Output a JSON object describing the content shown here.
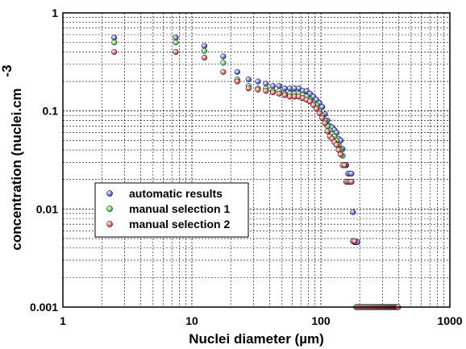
{
  "chart_data": {
    "type": "scatter",
    "xscale": "log",
    "yscale": "log",
    "xlim": [
      1,
      1000
    ],
    "ylim": [
      0.001,
      1
    ],
    "grid": true,
    "legend_position": "lower-left",
    "xlabel": "Nuclei diameter (µm)",
    "ylabel": "concentration (nuclei.cm",
    "ylabel_superscript": "-3",
    "x_ticks": [
      {
        "value": 1,
        "label": "1"
      },
      {
        "value": 10,
        "label": "10"
      },
      {
        "value": 100,
        "label": "100"
      },
      {
        "value": 1000,
        "label": "1000"
      }
    ],
    "y_ticks": [
      {
        "value": 1,
        "label": "1"
      },
      {
        "value": 0.1,
        "label": "0.1"
      },
      {
        "value": 0.01,
        "label": "0.01"
      },
      {
        "value": 0.001,
        "label": "0.001"
      }
    ],
    "series": [
      {
        "name": "automatic results",
        "color": "#2233cc",
        "points": [
          [
            2.5,
            0.56
          ],
          [
            7.5,
            0.56
          ],
          [
            12.5,
            0.46
          ],
          [
            17.5,
            0.36
          ],
          [
            22.5,
            0.25
          ],
          [
            27.5,
            0.21
          ],
          [
            32.5,
            0.2
          ],
          [
            37.5,
            0.19
          ],
          [
            42.5,
            0.18
          ],
          [
            47.5,
            0.18
          ],
          [
            52.5,
            0.17
          ],
          [
            57.5,
            0.17
          ],
          [
            62.5,
            0.17
          ],
          [
            67.5,
            0.17
          ],
          [
            72.5,
            0.16
          ],
          [
            77.5,
            0.16
          ],
          [
            82.5,
            0.15
          ],
          [
            87.5,
            0.14
          ],
          [
            92.5,
            0.13
          ],
          [
            97.5,
            0.12
          ],
          [
            102.5,
            0.11
          ],
          [
            107.5,
            0.093
          ],
          [
            112.5,
            0.08
          ],
          [
            117.5,
            0.07
          ],
          [
            122.5,
            0.068
          ],
          [
            127.5,
            0.064
          ],
          [
            132.5,
            0.06
          ],
          [
            137.5,
            0.052
          ],
          [
            142.5,
            0.05
          ],
          [
            147.5,
            0.041
          ],
          [
            152.5,
            0.028
          ],
          [
            157.5,
            0.028
          ],
          [
            162.5,
            0.023
          ],
          [
            167.5,
            0.023
          ],
          [
            172.5,
            0.023
          ],
          [
            177.5,
            0.0093
          ],
          [
            182.5,
            0.0046
          ],
          [
            187.5,
            0.0046
          ],
          [
            192.5,
            0.0046
          ]
        ]
      },
      {
        "name": "manual selection 1",
        "color": "#22bb22",
        "points": [
          [
            2.5,
            0.5
          ],
          [
            7.5,
            0.5
          ],
          [
            12.5,
            0.41
          ],
          [
            17.5,
            0.31
          ],
          [
            22.5,
            0.21
          ],
          [
            27.5,
            0.18
          ],
          [
            32.5,
            0.17
          ],
          [
            37.5,
            0.17
          ],
          [
            42.5,
            0.16
          ],
          [
            47.5,
            0.16
          ],
          [
            52.5,
            0.15
          ],
          [
            57.5,
            0.15
          ],
          [
            62.5,
            0.15
          ],
          [
            67.5,
            0.15
          ],
          [
            72.5,
            0.145
          ],
          [
            77.5,
            0.14
          ],
          [
            82.5,
            0.13
          ],
          [
            87.5,
            0.12
          ],
          [
            92.5,
            0.115
          ],
          [
            97.5,
            0.1
          ],
          [
            102.5,
            0.09
          ],
          [
            107.5,
            0.08
          ],
          [
            112.5,
            0.07
          ],
          [
            117.5,
            0.063
          ],
          [
            122.5,
            0.058
          ],
          [
            127.5,
            0.055
          ],
          [
            132.5,
            0.05
          ],
          [
            137.5,
            0.045
          ],
          [
            142.5,
            0.04
          ],
          [
            147.5,
            0.035
          ],
          [
            152.5,
            0.028
          ],
          [
            157.5,
            0.019
          ],
          [
            162.5,
            0.019
          ],
          [
            167.5,
            0.019
          ],
          [
            172.5,
            0.019
          ],
          [
            177.5,
            0.0047
          ],
          [
            182.5,
            0.0047
          ]
        ]
      },
      {
        "name": "manual selection 2",
        "color": "#cc2222",
        "points": [
          [
            2.5,
            0.4
          ],
          [
            7.5,
            0.4
          ],
          [
            12.5,
            0.35
          ],
          [
            17.5,
            0.25
          ],
          [
            22.5,
            0.2
          ],
          [
            27.5,
            0.17
          ],
          [
            32.5,
            0.165
          ],
          [
            37.5,
            0.16
          ],
          [
            42.5,
            0.155
          ],
          [
            47.5,
            0.15
          ],
          [
            52.5,
            0.145
          ],
          [
            57.5,
            0.14
          ],
          [
            62.5,
            0.14
          ],
          [
            67.5,
            0.14
          ],
          [
            72.5,
            0.135
          ],
          [
            77.5,
            0.13
          ],
          [
            82.5,
            0.125
          ],
          [
            87.5,
            0.115
          ],
          [
            92.5,
            0.105
          ],
          [
            97.5,
            0.095
          ],
          [
            102.5,
            0.085
          ],
          [
            107.5,
            0.075
          ],
          [
            112.5,
            0.062
          ],
          [
            117.5,
            0.055
          ],
          [
            122.5,
            0.052
          ],
          [
            127.5,
            0.048
          ],
          [
            132.5,
            0.045
          ],
          [
            137.5,
            0.04
          ],
          [
            142.5,
            0.036
          ],
          [
            147.5,
            0.028
          ],
          [
            152.5,
            0.028
          ],
          [
            157.5,
            0.019
          ],
          [
            162.5,
            0.019
          ],
          [
            167.5,
            0.019
          ],
          [
            172.5,
            0.019
          ],
          [
            177.5,
            0.0047
          ],
          [
            182.5,
            0.0047
          ],
          [
            187.5,
            0.001
          ],
          [
            192.5,
            0.001
          ],
          [
            197.5,
            0.001
          ],
          [
            202.5,
            0.001
          ],
          [
            207.5,
            0.001
          ],
          [
            212.5,
            0.001
          ],
          [
            217.5,
            0.001
          ],
          [
            222.5,
            0.001
          ],
          [
            227.5,
            0.001
          ],
          [
            232.5,
            0.001
          ],
          [
            237.5,
            0.001
          ],
          [
            242.5,
            0.001
          ],
          [
            247.5,
            0.001
          ],
          [
            252.5,
            0.001
          ],
          [
            257.5,
            0.001
          ],
          [
            262.5,
            0.001
          ],
          [
            267.5,
            0.001
          ],
          [
            272.5,
            0.001
          ],
          [
            277.5,
            0.001
          ],
          [
            282.5,
            0.001
          ],
          [
            287.5,
            0.001
          ],
          [
            292.5,
            0.001
          ],
          [
            297.5,
            0.001
          ],
          [
            302.5,
            0.001
          ],
          [
            307.5,
            0.001
          ],
          [
            312.5,
            0.001
          ],
          [
            317.5,
            0.001
          ],
          [
            322.5,
            0.001
          ],
          [
            327.5,
            0.001
          ],
          [
            332.5,
            0.001
          ],
          [
            337.5,
            0.001
          ],
          [
            342.5,
            0.001
          ],
          [
            347.5,
            0.001
          ],
          [
            352.5,
            0.001
          ],
          [
            357.5,
            0.001
          ],
          [
            362.5,
            0.001
          ],
          [
            367.5,
            0.001
          ],
          [
            372.5,
            0.001
          ],
          [
            377.5,
            0.001
          ],
          [
            382.5,
            0.001
          ],
          [
            387.5,
            0.001
          ],
          [
            392.5,
            0.001
          ],
          [
            397.5,
            0.001
          ]
        ]
      }
    ]
  }
}
